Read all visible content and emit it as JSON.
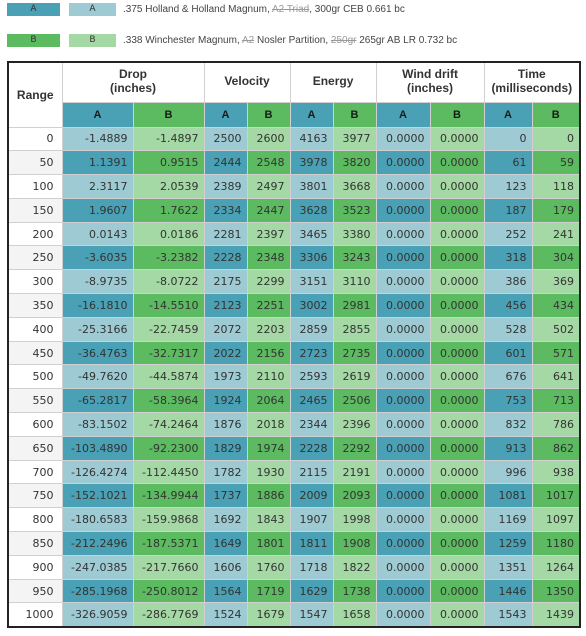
{
  "colors": {
    "a_dark": "#4aa0b4",
    "a_light": "#9ecbd3",
    "b_dark": "#5cba60",
    "b_light": "#a4d8a4"
  },
  "legend": {
    "a": {
      "swatch1": "A",
      "swatch2": "A",
      "text_pre": ".375 Holland & Holland Magnum, ",
      "text_strike": "A2 Triad",
      "text_post": ", 300gr CEB  0.661 bc"
    },
    "b": {
      "swatch1": "B",
      "swatch2": "B",
      "text_pre": ".338 Winchester Magnum, ",
      "text_strike1": "A2",
      "text_mid": " Nosler Partition, ",
      "text_strike2": "250gr",
      "text_post": "  265gr AB LR  0.732 bc"
    }
  },
  "table": {
    "headers": {
      "range": "Range",
      "drop_line1": "Drop",
      "drop_line2": "(inches)",
      "velocity": "Velocity",
      "energy": "Energy",
      "wind_line1": "Wind drift",
      "wind_line2": "(inches)",
      "time_line1": "Time",
      "time_line2": "(milliseconds)",
      "sub_a": "A",
      "sub_b": "B"
    },
    "rows": [
      [
        "0",
        "-1.4889",
        "-1.4897",
        "2500",
        "2600",
        "4163",
        "3977",
        "0.0000",
        "0.0000",
        "0",
        "0"
      ],
      [
        "50",
        "1.1391",
        "0.9515",
        "2444",
        "2548",
        "3978",
        "3820",
        "0.0000",
        "0.0000",
        "61",
        "59"
      ],
      [
        "100",
        "2.3117",
        "2.0539",
        "2389",
        "2497",
        "3801",
        "3668",
        "0.0000",
        "0.0000",
        "123",
        "118"
      ],
      [
        "150",
        "1.9607",
        "1.7622",
        "2334",
        "2447",
        "3628",
        "3523",
        "0.0000",
        "0.0000",
        "187",
        "179"
      ],
      [
        "200",
        "0.0143",
        "0.0186",
        "2281",
        "2397",
        "3465",
        "3380",
        "0.0000",
        "0.0000",
        "252",
        "241"
      ],
      [
        "250",
        "-3.6035",
        "-3.2382",
        "2228",
        "2348",
        "3306",
        "3243",
        "0.0000",
        "0.0000",
        "318",
        "304"
      ],
      [
        "300",
        "-8.9735",
        "-8.0722",
        "2175",
        "2299",
        "3151",
        "3110",
        "0.0000",
        "0.0000",
        "386",
        "369"
      ],
      [
        "350",
        "-16.1810",
        "-14.5510",
        "2123",
        "2251",
        "3002",
        "2981",
        "0.0000",
        "0.0000",
        "456",
        "434"
      ],
      [
        "400",
        "-25.3166",
        "-22.7459",
        "2072",
        "2203",
        "2859",
        "2855",
        "0.0000",
        "0.0000",
        "528",
        "502"
      ],
      [
        "450",
        "-36.4763",
        "-32.7317",
        "2022",
        "2156",
        "2723",
        "2735",
        "0.0000",
        "0.0000",
        "601",
        "571"
      ],
      [
        "500",
        "-49.7620",
        "-44.5874",
        "1973",
        "2110",
        "2593",
        "2619",
        "0.0000",
        "0.0000",
        "676",
        "641"
      ],
      [
        "550",
        "-65.2817",
        "-58.3964",
        "1924",
        "2064",
        "2465",
        "2506",
        "0.0000",
        "0.0000",
        "753",
        "713"
      ],
      [
        "600",
        "-83.1502",
        "-74.2464",
        "1876",
        "2018",
        "2344",
        "2396",
        "0.0000",
        "0.0000",
        "832",
        "786"
      ],
      [
        "650",
        "-103.4890",
        "-92.2300",
        "1829",
        "1974",
        "2228",
        "2292",
        "0.0000",
        "0.0000",
        "913",
        "862"
      ],
      [
        "700",
        "-126.4274",
        "-112.4450",
        "1782",
        "1930",
        "2115",
        "2191",
        "0.0000",
        "0.0000",
        "996",
        "938"
      ],
      [
        "750",
        "-152.1021",
        "-134.9944",
        "1737",
        "1886",
        "2009",
        "2093",
        "0.0000",
        "0.0000",
        "1081",
        "1017"
      ],
      [
        "800",
        "-180.6583",
        "-159.9868",
        "1692",
        "1843",
        "1907",
        "1998",
        "0.0000",
        "0.0000",
        "1169",
        "1097"
      ],
      [
        "850",
        "-212.2496",
        "-187.5371",
        "1649",
        "1801",
        "1811",
        "1908",
        "0.0000",
        "0.0000",
        "1259",
        "1180"
      ],
      [
        "900",
        "-247.0385",
        "-217.7660",
        "1606",
        "1760",
        "1718",
        "1822",
        "0.0000",
        "0.0000",
        "1351",
        "1264"
      ],
      [
        "950",
        "-285.1968",
        "-250.8012",
        "1564",
        "1719",
        "1629",
        "1738",
        "0.0000",
        "0.0000",
        "1446",
        "1350"
      ],
      [
        "1000",
        "-326.9059",
        "-286.7769",
        "1524",
        "1679",
        "1547",
        "1658",
        "0.0000",
        "0.0000",
        "1543",
        "1439"
      ]
    ]
  }
}
